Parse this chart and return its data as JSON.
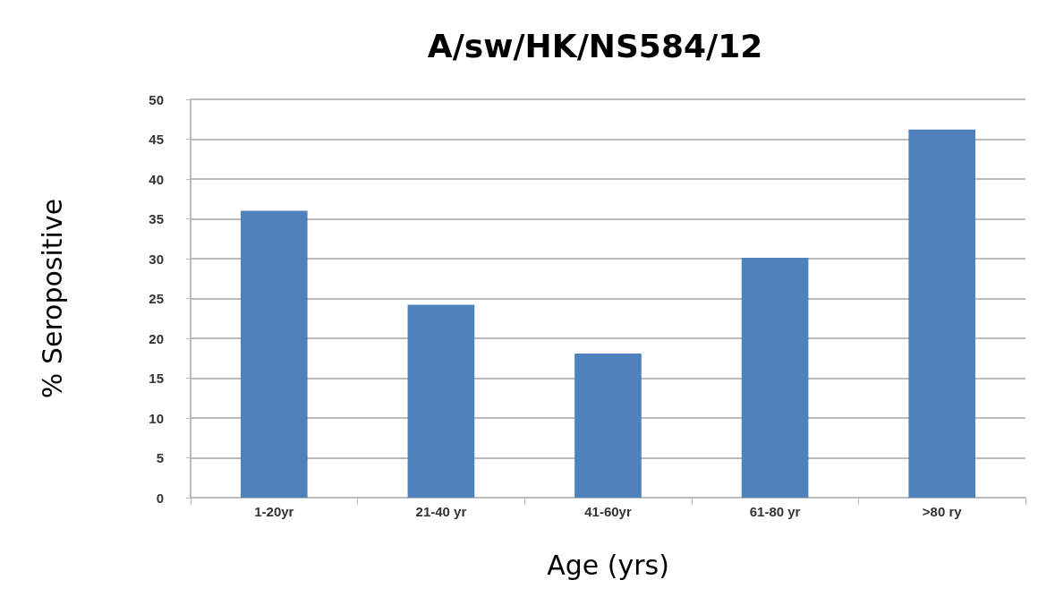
{
  "chart_data": {
    "type": "bar",
    "title": "A/sw/HK/NS584/12",
    "xlabel": "Age (yrs)",
    "ylabel": "% Seropositive",
    "categories": [
      "1-20yr",
      "21-40 yr",
      "41-60yr",
      "61-80 yr",
      ">80 ry"
    ],
    "values": [
      36,
      24.2,
      18.1,
      30.1,
      46.2
    ],
    "color": "#4f81bd",
    "ylim": [
      0,
      50
    ],
    "yticks": [
      0,
      5,
      10,
      15,
      20,
      25,
      30,
      35,
      40,
      45,
      50
    ],
    "grid": "y"
  }
}
